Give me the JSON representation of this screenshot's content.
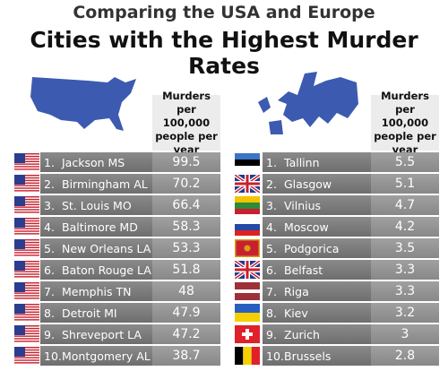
{
  "header": {
    "title": "Comparing the USA and Europe",
    "subtitle": "Cities with the Highest Murder Rates"
  },
  "usa": {
    "column_header": "Murders per 100,000 people per year",
    "rows": [
      [
        "1.",
        "Jackson MS",
        "99.5"
      ],
      [
        "2.",
        "Birmingham AL",
        "70.2"
      ],
      [
        "3.",
        "St. Louis MO",
        "66.4"
      ],
      [
        "4.",
        "Baltimore MD",
        "58.3"
      ],
      [
        "5.",
        "New Orleans LA",
        "53.3"
      ],
      [
        "6.",
        "Baton Rouge LA",
        "51.8"
      ],
      [
        "7.",
        "Memphis TN",
        "48"
      ],
      [
        "8.",
        "Detroit MI",
        "47.9"
      ],
      [
        "9.",
        "Shreveport LA",
        "47.2"
      ],
      [
        "10.",
        "Montgomery AL",
        "38.7"
      ]
    ]
  },
  "europe": {
    "column_header": "Murders per 100,000 people per year",
    "rows": [
      [
        "1.",
        "Tallinn",
        "5.5"
      ],
      [
        "2.",
        "Glasgow",
        "5.1"
      ],
      [
        "3.",
        "Vilnius",
        "4.7"
      ],
      [
        "4.",
        "Moscow",
        "4.2"
      ],
      [
        "5.",
        "Podgorica",
        "3.5"
      ],
      [
        "6.",
        "Belfast",
        "3.3"
      ],
      [
        "7.",
        "Riga",
        "3.3"
      ],
      [
        "8.",
        "Kiev",
        "3.2"
      ],
      [
        "9.",
        "Zurich",
        "3"
      ],
      [
        "10.",
        "Brussels",
        "2.8"
      ]
    ]
  }
}
